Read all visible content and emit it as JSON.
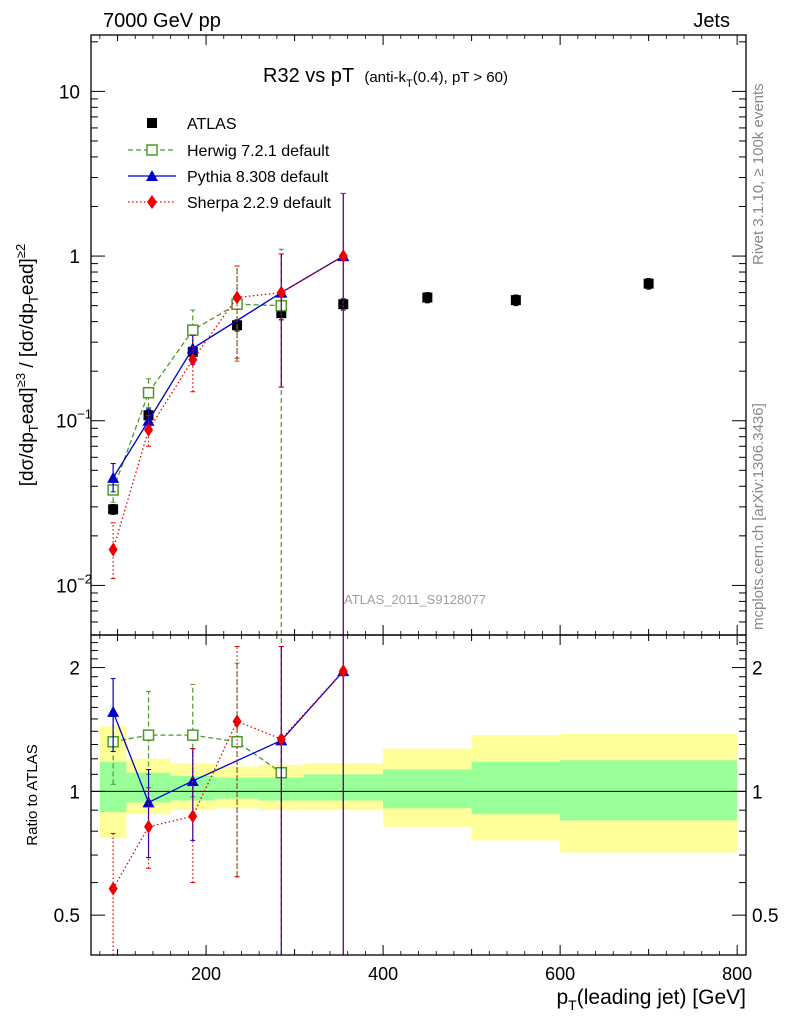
{
  "header": {
    "left": "7000 GeV pp",
    "right": "Jets"
  },
  "side_text": {
    "rivet": "Rivet 3.1.10, ≥ 100k events",
    "mcplots": "mcplots.cern.ch [arXiv:1306.3436]"
  },
  "watermark": "ATLAS_2011_S9128077",
  "ratio_ylabel": "Ratio to ATLAS",
  "chart_data": {
    "type": "scatter",
    "title": "R32 vs pT",
    "title_suffix": "(anti-k",
    "title_sub": "T",
    "title_rest": "(0.4), pT > 60)",
    "xlabel": "p",
    "xlabel_sub": "T",
    "xlabel_rest": "(leading jet) [GeV]",
    "ylabel_parts": [
      "[dσ/dp",
      "T",
      "ead]",
      "≥3",
      " / [dσ/dp",
      "T",
      "ead]",
      "≥2"
    ],
    "xlim": [
      70,
      810
    ],
    "ylim": [
      0.005,
      22
    ],
    "yscale": "log",
    "x_ticks": [
      200,
      400,
      600,
      800
    ],
    "x_tick_labels": [
      "200",
      "400",
      "600",
      "800"
    ],
    "y_tick_labels": [
      {
        "value": 10,
        "base": "10",
        "exp": ""
      },
      {
        "value": 1,
        "base": "1",
        "exp": ""
      },
      {
        "value": 0.1,
        "base": "10",
        "exp": "−1"
      },
      {
        "value": 0.01,
        "base": "10",
        "exp": "−2"
      }
    ],
    "legend_position": "top-left",
    "series": [
      {
        "name": "ATLAS",
        "color": "#000000",
        "marker": "square-filled",
        "line": "none",
        "x": [
          95,
          135,
          185,
          235,
          285,
          355,
          450,
          550,
          700
        ],
        "y": [
          0.029,
          0.108,
          0.262,
          0.38,
          0.45,
          0.51,
          0.56,
          0.54,
          0.68
        ],
        "yerr": [
          0.002,
          0.008,
          0.02,
          0.03,
          0.04,
          0.04,
          0.04,
          0.04,
          0.05
        ]
      },
      {
        "name": "Herwig 7.2.1 default",
        "color": "#4c9a2a",
        "marker": "square-open",
        "line": "dashed",
        "x": [
          95,
          135,
          185,
          235,
          285
        ],
        "y": [
          0.038,
          0.148,
          0.355,
          0.51,
          0.5
        ],
        "ylow": [
          0.032,
          0.12,
          0.26,
          0.23,
          0.001
        ],
        "yhigh": [
          0.046,
          0.18,
          0.47,
          0.87,
          1.1
        ]
      },
      {
        "name": "Pythia 8.308 default",
        "color": "#0000cc",
        "marker": "triangle-filled",
        "line": "solid",
        "x": [
          95,
          135,
          185,
          285,
          355
        ],
        "y": [
          0.045,
          0.1,
          0.275,
          0.6,
          1.0
        ],
        "ylow": [
          0.037,
          0.085,
          0.22,
          0.16,
          0.001
        ],
        "yhigh": [
          0.055,
          0.118,
          0.33,
          1.03,
          2.4
        ]
      },
      {
        "name": "Sherpa 2.2.9 default",
        "color": "#ee0000",
        "marker": "diamond-filled",
        "line": "dotted",
        "x": [
          95,
          135,
          185,
          235,
          285,
          355
        ],
        "y": [
          0.0165,
          0.088,
          0.235,
          0.56,
          0.6,
          1.0
        ],
        "ylow": [
          0.011,
          0.07,
          0.15,
          0.24,
          0.16,
          0.001
        ],
        "yhigh": [
          0.024,
          0.108,
          0.33,
          0.87,
          1.03,
          2.4
        ]
      }
    ],
    "ratio": {
      "ylim": [
        0.4,
        2.4
      ],
      "yscale": "log",
      "y_ticks": [
        0.5,
        1,
        2
      ],
      "y_tick_labels": [
        "0.5",
        "1",
        "2"
      ],
      "bands": [
        {
          "x0": 80,
          "x1": 110,
          "yellow": [
            0.77,
            1.44
          ],
          "green": [
            0.89,
            1.18
          ]
        },
        {
          "x0": 110,
          "x1": 160,
          "yellow": [
            0.88,
            1.2
          ],
          "green": [
            0.94,
            1.11
          ]
        },
        {
          "x0": 160,
          "x1": 210,
          "yellow": [
            0.9,
            1.17
          ],
          "green": [
            0.95,
            1.09
          ]
        },
        {
          "x0": 210,
          "x1": 260,
          "yellow": [
            0.91,
            1.15
          ],
          "green": [
            0.96,
            1.08
          ]
        },
        {
          "x0": 260,
          "x1": 310,
          "yellow": [
            0.9,
            1.16
          ],
          "green": [
            0.95,
            1.08
          ]
        },
        {
          "x0": 310,
          "x1": 400,
          "yellow": [
            0.9,
            1.17
          ],
          "green": [
            0.95,
            1.1
          ]
        },
        {
          "x0": 400,
          "x1": 500,
          "yellow": [
            0.82,
            1.27
          ],
          "green": [
            0.91,
            1.13
          ]
        },
        {
          "x0": 500,
          "x1": 600,
          "yellow": [
            0.76,
            1.37
          ],
          "green": [
            0.88,
            1.18
          ]
        },
        {
          "x0": 600,
          "x1": 800,
          "yellow": [
            0.71,
            1.38
          ],
          "green": [
            0.85,
            1.19
          ]
        }
      ],
      "series": [
        {
          "name": "Herwig 7.2.1 default",
          "x": [
            95,
            135,
            185,
            235,
            285
          ],
          "y": [
            1.32,
            1.37,
            1.37,
            1.32,
            1.11
          ],
          "ylow": [
            1.04,
            1.1,
            0.97,
            0.62,
            0.01
          ],
          "yhigh": [
            1.55,
            1.75,
            1.82,
            2.05,
            2.5
          ]
        },
        {
          "name": "Pythia 8.308 default",
          "x": [
            95,
            135,
            185,
            285,
            355
          ],
          "y": [
            1.56,
            0.94,
            1.06,
            1.33,
            1.96
          ],
          "ylow": [
            1.25,
            0.69,
            0.76,
            0.01,
            0.01
          ],
          "yhigh": [
            1.88,
            1.13,
            1.27,
            2.25,
            2.5
          ]
        },
        {
          "name": "Sherpa 2.2.9 default",
          "x": [
            95,
            135,
            185,
            235,
            285,
            355
          ],
          "y": [
            0.58,
            0.82,
            0.87,
            1.48,
            1.34,
            1.96
          ],
          "ylow": [
            0.37,
            0.65,
            0.6,
            0.62,
            0.01,
            0.01
          ],
          "yhigh": [
            0.79,
            1.02,
            1.27,
            2.25,
            2.25,
            2.5
          ]
        }
      ]
    }
  }
}
